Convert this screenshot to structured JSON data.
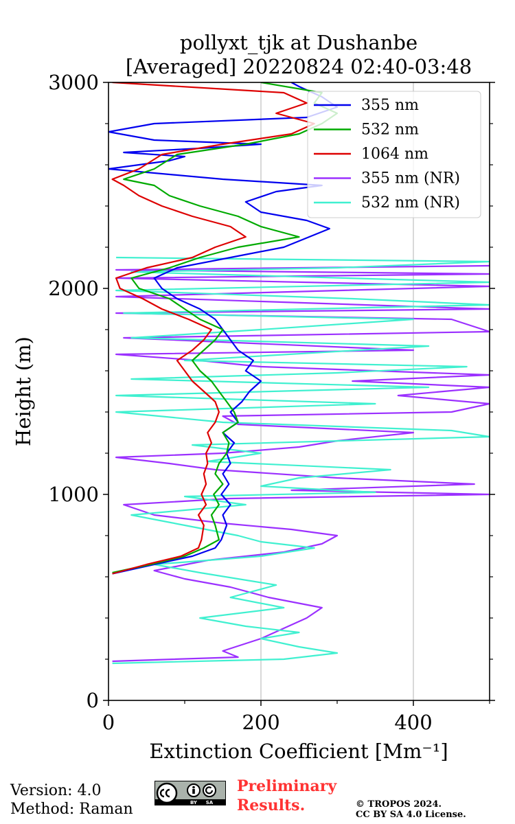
{
  "chart_data": {
    "type": "line",
    "title": "pollyxt_tjk at Dushanbe",
    "subtitle": "[Averaged] 20220824 02:40-03:48",
    "xlabel": "Extinction Coefficient [Mm⁻¹]",
    "ylabel": "Height (m)",
    "xlim": [
      0,
      500
    ],
    "ylim": [
      0,
      3000
    ],
    "x_ticks": [
      "0",
      "200",
      "400"
    ],
    "y_ticks": [
      "0",
      "1000",
      "2000",
      "3000"
    ],
    "grid": "vertical",
    "legend_position": "top-right",
    "series": [
      {
        "name": "355 nm",
        "color": "#0000ee",
        "points": [
          [
            5,
            615
          ],
          [
            60,
            660
          ],
          [
            110,
            700
          ],
          [
            140,
            740
          ],
          [
            148,
            780
          ],
          [
            155,
            850
          ],
          [
            150,
            900
          ],
          [
            160,
            950
          ],
          [
            148,
            1000
          ],
          [
            158,
            1050
          ],
          [
            150,
            1100
          ],
          [
            160,
            1150
          ],
          [
            155,
            1200
          ],
          [
            165,
            1250
          ],
          [
            150,
            1300
          ],
          [
            170,
            1350
          ],
          [
            160,
            1400
          ],
          [
            175,
            1450
          ],
          [
            185,
            1500
          ],
          [
            200,
            1550
          ],
          [
            180,
            1600
          ],
          [
            190,
            1650
          ],
          [
            170,
            1700
          ],
          [
            160,
            1750
          ],
          [
            150,
            1800
          ],
          [
            140,
            1850
          ],
          [
            120,
            1900
          ],
          [
            90,
            1950
          ],
          [
            70,
            2000
          ],
          [
            60,
            2050
          ],
          [
            90,
            2100
          ],
          [
            160,
            2150
          ],
          [
            230,
            2200
          ],
          [
            290,
            2290
          ],
          [
            260,
            2330
          ],
          [
            200,
            2370
          ],
          [
            180,
            2420
          ],
          [
            220,
            2470
          ],
          [
            280,
            2500
          ],
          [
            150,
            2530
          ],
          [
            0,
            2580
          ],
          [
            80,
            2620
          ],
          [
            100,
            2640
          ],
          [
            20,
            2660
          ],
          [
            120,
            2680
          ],
          [
            200,
            2700
          ],
          [
            60,
            2720
          ],
          [
            0,
            2760
          ],
          [
            60,
            2800
          ],
          [
            260,
            2830
          ],
          [
            300,
            2880
          ],
          [
            280,
            2930
          ],
          [
            250,
            2980
          ],
          [
            240,
            3000
          ]
        ]
      },
      {
        "name": "532 nm",
        "color": "#00aa00",
        "points": [
          [
            5,
            620
          ],
          [
            55,
            660
          ],
          [
            100,
            700
          ],
          [
            125,
            740
          ],
          [
            145,
            780
          ],
          [
            140,
            850
          ],
          [
            135,
            900
          ],
          [
            145,
            950
          ],
          [
            138,
            1000
          ],
          [
            150,
            1050
          ],
          [
            140,
            1100
          ],
          [
            145,
            1150
          ],
          [
            155,
            1200
          ],
          [
            158,
            1250
          ],
          [
            150,
            1300
          ],
          [
            170,
            1350
          ],
          [
            165,
            1400
          ],
          [
            155,
            1450
          ],
          [
            145,
            1500
          ],
          [
            135,
            1550
          ],
          [
            120,
            1600
          ],
          [
            110,
            1650
          ],
          [
            125,
            1700
          ],
          [
            140,
            1750
          ],
          [
            150,
            1800
          ],
          [
            120,
            1850
          ],
          [
            100,
            1900
          ],
          [
            80,
            1950
          ],
          [
            40,
            2000
          ],
          [
            30,
            2050
          ],
          [
            80,
            2100
          ],
          [
            120,
            2150
          ],
          [
            170,
            2200
          ],
          [
            250,
            2250
          ],
          [
            200,
            2300
          ],
          [
            170,
            2350
          ],
          [
            120,
            2400
          ],
          [
            80,
            2450
          ],
          [
            60,
            2500
          ],
          [
            20,
            2530
          ],
          [
            60,
            2580
          ],
          [
            90,
            2650
          ],
          [
            180,
            2700
          ],
          [
            250,
            2750
          ],
          [
            280,
            2800
          ],
          [
            300,
            2850
          ],
          [
            270,
            2900
          ],
          [
            280,
            2950
          ],
          [
            200,
            3000
          ]
        ]
      },
      {
        "name": "1064 nm",
        "color": "#dd0000",
        "points": [
          [
            5,
            615
          ],
          [
            50,
            660
          ],
          [
            95,
            700
          ],
          [
            118,
            740
          ],
          [
            122,
            780
          ],
          [
            125,
            850
          ],
          [
            118,
            900
          ],
          [
            128,
            950
          ],
          [
            122,
            1000
          ],
          [
            128,
            1050
          ],
          [
            125,
            1100
          ],
          [
            130,
            1150
          ],
          [
            128,
            1200
          ],
          [
            135,
            1250
          ],
          [
            130,
            1300
          ],
          [
            140,
            1350
          ],
          [
            145,
            1400
          ],
          [
            140,
            1450
          ],
          [
            125,
            1500
          ],
          [
            110,
            1550
          ],
          [
            100,
            1600
          ],
          [
            90,
            1650
          ],
          [
            110,
            1700
          ],
          [
            125,
            1750
          ],
          [
            135,
            1800
          ],
          [
            105,
            1850
          ],
          [
            70,
            1900
          ],
          [
            45,
            1950
          ],
          [
            15,
            2000
          ],
          [
            10,
            2050
          ],
          [
            50,
            2100
          ],
          [
            110,
            2150
          ],
          [
            140,
            2200
          ],
          [
            180,
            2250
          ],
          [
            160,
            2300
          ],
          [
            110,
            2350
          ],
          [
            70,
            2400
          ],
          [
            40,
            2450
          ],
          [
            20,
            2500
          ],
          [
            5,
            2530
          ],
          [
            40,
            2580
          ],
          [
            70,
            2650
          ],
          [
            150,
            2700
          ],
          [
            240,
            2750
          ],
          [
            270,
            2800
          ],
          [
            220,
            2850
          ],
          [
            260,
            2900
          ],
          [
            230,
            2950
          ],
          [
            5,
            3000
          ]
        ]
      },
      {
        "name": "355 nm (NR)",
        "color": "#9b30ff",
        "points": [
          [
            5,
            190
          ],
          [
            170,
            210
          ],
          [
            150,
            240
          ],
          [
            200,
            300
          ],
          [
            230,
            350
          ],
          [
            260,
            400
          ],
          [
            280,
            450
          ],
          [
            210,
            500
          ],
          [
            160,
            550
          ],
          [
            100,
            590
          ],
          [
            60,
            630
          ],
          [
            130,
            680
          ],
          [
            230,
            720
          ],
          [
            280,
            760
          ],
          [
            300,
            800
          ],
          [
            240,
            830
          ],
          [
            150,
            860
          ],
          [
            60,
            900
          ],
          [
            20,
            950
          ],
          [
            160,
            980
          ],
          [
            500,
            1000
          ],
          [
            240,
            1020
          ],
          [
            480,
            1050
          ],
          [
            300,
            1080
          ],
          [
            140,
            1120
          ],
          [
            80,
            1150
          ],
          [
            10,
            1180
          ],
          [
            150,
            1200
          ],
          [
            250,
            1230
          ],
          [
            300,
            1260
          ],
          [
            400,
            1300
          ],
          [
            170,
            1340
          ],
          [
            150,
            1380
          ],
          [
            450,
            1400
          ],
          [
            500,
            1440
          ],
          [
            380,
            1480
          ],
          [
            500,
            1520
          ],
          [
            320,
            1550
          ],
          [
            500,
            1580
          ],
          [
            200,
            1620
          ],
          [
            120,
            1650
          ],
          [
            10,
            1680
          ],
          [
            400,
            1700
          ],
          [
            20,
            1760
          ],
          [
            500,
            1790
          ],
          [
            450,
            1850
          ],
          [
            10,
            1880
          ],
          [
            500,
            1900
          ],
          [
            10,
            1960
          ],
          [
            500,
            2010
          ],
          [
            10,
            2050
          ],
          [
            500,
            2070
          ],
          [
            10,
            2090
          ],
          [
            500,
            2110
          ]
        ]
      },
      {
        "name": "532 nm (NR)",
        "color": "#40f0d0",
        "points": [
          [
            5,
            180
          ],
          [
            230,
            200
          ],
          [
            300,
            230
          ],
          [
            250,
            260
          ],
          [
            200,
            300
          ],
          [
            250,
            330
          ],
          [
            180,
            360
          ],
          [
            120,
            400
          ],
          [
            230,
            450
          ],
          [
            160,
            500
          ],
          [
            220,
            560
          ],
          [
            120,
            620
          ],
          [
            60,
            660
          ],
          [
            200,
            700
          ],
          [
            270,
            740
          ],
          [
            200,
            770
          ],
          [
            170,
            800
          ],
          [
            100,
            850
          ],
          [
            30,
            900
          ],
          [
            180,
            950
          ],
          [
            100,
            990
          ],
          [
            350,
            1010
          ],
          [
            200,
            1040
          ],
          [
            250,
            1080
          ],
          [
            370,
            1120
          ],
          [
            130,
            1160
          ],
          [
            200,
            1200
          ],
          [
            110,
            1240
          ],
          [
            500,
            1280
          ],
          [
            450,
            1310
          ],
          [
            150,
            1350
          ],
          [
            10,
            1400
          ],
          [
            350,
            1440
          ],
          [
            10,
            1480
          ],
          [
            420,
            1520
          ],
          [
            30,
            1560
          ],
          [
            300,
            1590
          ],
          [
            470,
            1620
          ],
          [
            100,
            1650
          ],
          [
            420,
            1720
          ],
          [
            30,
            1760
          ],
          [
            200,
            1800
          ],
          [
            400,
            1850
          ],
          [
            20,
            1880
          ],
          [
            500,
            1920
          ],
          [
            320,
            1950
          ],
          [
            10,
            1990
          ],
          [
            500,
            2030
          ],
          [
            30,
            2080
          ],
          [
            300,
            2100
          ],
          [
            500,
            2130
          ],
          [
            10,
            2150
          ]
        ]
      }
    ]
  },
  "footer": {
    "version": "Version: 4.0",
    "method": "Method: Raman",
    "cc_icons": "cc-by-sa-icon",
    "cc_by": "BY",
    "cc_sa": "SA",
    "preliminary_line1": "Preliminary",
    "preliminary_line2": "Results.",
    "copyright_line1": "© TROPOS 2024.",
    "copyright_line2": "CC BY SA 4.0 License."
  }
}
